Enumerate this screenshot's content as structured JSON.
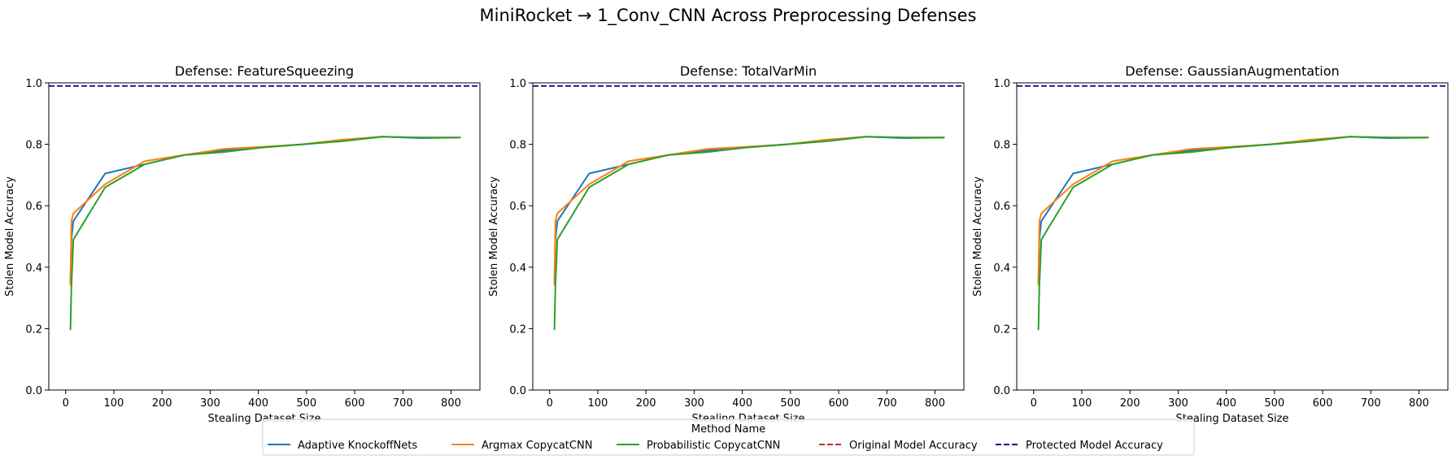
{
  "title": "MiniRocket → 1_Conv_CNN Across Preprocessing Defenses",
  "legend": {
    "title": "Method Name",
    "placement": "bottom-center"
  },
  "colors": {
    "Adaptive KnockoffNets": "#1f77b4",
    "Argmax CopycatCNN": "#ff7f0e",
    "Probabilistic CopycatCNN": "#2ca02c",
    "Original Model Accuracy": "#d62728",
    "Protected Model Accuracy": "#00008b"
  },
  "chart_data": [
    {
      "type": "line",
      "title": "Defense: FeatureSqueezing",
      "xlabel": "Stealing Dataset Size",
      "ylabel": "Stolen Model Accuracy",
      "xlim": [
        -35,
        860
      ],
      "ylim": [
        0,
        1.0
      ],
      "xticks": [
        0,
        100,
        200,
        300,
        400,
        500,
        600,
        700,
        800
      ],
      "yticks": [
        0.0,
        0.2,
        0.4,
        0.6,
        0.8,
        1.0
      ],
      "grid": false,
      "x": [
        10,
        12,
        16,
        82,
        164,
        246,
        328,
        410,
        492,
        574,
        656,
        738,
        820
      ],
      "series": [
        {
          "name": "Adaptive KnockoffNets",
          "values": [
            0.35,
            0.49,
            0.55,
            0.705,
            0.735,
            0.765,
            0.78,
            0.79,
            0.8,
            0.81,
            0.825,
            0.82,
            0.822
          ]
        },
        {
          "name": "Argmax CopycatCNN",
          "values": [
            0.34,
            0.55,
            0.575,
            0.67,
            0.745,
            0.765,
            0.785,
            0.792,
            0.8,
            0.815,
            0.825,
            0.822,
            0.822
          ]
        },
        {
          "name": "Probabilistic CopycatCNN",
          "values": [
            0.195,
            0.34,
            0.49,
            0.66,
            0.735,
            0.765,
            0.775,
            0.79,
            0.8,
            0.81,
            0.825,
            0.822,
            0.822
          ]
        }
      ],
      "reference_lines": [
        {
          "name": "Original Model Accuracy",
          "y": 0.99,
          "style": "dashed"
        },
        {
          "name": "Protected Model Accuracy",
          "y": 0.99,
          "style": "dashed"
        }
      ]
    },
    {
      "type": "line",
      "title": "Defense: TotalVarMin",
      "xlabel": "Stealing Dataset Size",
      "ylabel": "Stolen Model Accuracy",
      "xlim": [
        -35,
        860
      ],
      "ylim": [
        0,
        1.0
      ],
      "xticks": [
        0,
        100,
        200,
        300,
        400,
        500,
        600,
        700,
        800
      ],
      "yticks": [
        0.0,
        0.2,
        0.4,
        0.6,
        0.8,
        1.0
      ],
      "grid": false,
      "x": [
        10,
        12,
        16,
        82,
        164,
        246,
        328,
        410,
        492,
        574,
        656,
        738,
        820
      ],
      "series": [
        {
          "name": "Adaptive KnockoffNets",
          "values": [
            0.35,
            0.49,
            0.55,
            0.705,
            0.735,
            0.765,
            0.78,
            0.79,
            0.8,
            0.81,
            0.825,
            0.82,
            0.822
          ]
        },
        {
          "name": "Argmax CopycatCNN",
          "values": [
            0.34,
            0.55,
            0.575,
            0.67,
            0.745,
            0.765,
            0.785,
            0.792,
            0.8,
            0.815,
            0.825,
            0.822,
            0.822
          ]
        },
        {
          "name": "Probabilistic CopycatCNN",
          "values": [
            0.195,
            0.34,
            0.49,
            0.66,
            0.735,
            0.765,
            0.775,
            0.79,
            0.8,
            0.81,
            0.825,
            0.822,
            0.822
          ]
        }
      ],
      "reference_lines": [
        {
          "name": "Original Model Accuracy",
          "y": 0.99,
          "style": "dashed"
        },
        {
          "name": "Protected Model Accuracy",
          "y": 0.99,
          "style": "dashed"
        }
      ]
    },
    {
      "type": "line",
      "title": "Defense: GaussianAugmentation",
      "xlabel": "Stealing Dataset Size",
      "ylabel": "Stolen Model Accuracy",
      "xlim": [
        -35,
        860
      ],
      "ylim": [
        0,
        1.0
      ],
      "xticks": [
        0,
        100,
        200,
        300,
        400,
        500,
        600,
        700,
        800
      ],
      "yticks": [
        0.0,
        0.2,
        0.4,
        0.6,
        0.8,
        1.0
      ],
      "grid": false,
      "x": [
        10,
        12,
        16,
        82,
        164,
        246,
        328,
        410,
        492,
        574,
        656,
        738,
        820
      ],
      "series": [
        {
          "name": "Adaptive KnockoffNets",
          "values": [
            0.35,
            0.49,
            0.55,
            0.705,
            0.735,
            0.765,
            0.78,
            0.79,
            0.8,
            0.81,
            0.825,
            0.82,
            0.822
          ]
        },
        {
          "name": "Argmax CopycatCNN",
          "values": [
            0.34,
            0.55,
            0.575,
            0.67,
            0.745,
            0.765,
            0.785,
            0.792,
            0.8,
            0.815,
            0.825,
            0.822,
            0.822
          ]
        },
        {
          "name": "Probabilistic CopycatCNN",
          "values": [
            0.195,
            0.34,
            0.49,
            0.66,
            0.735,
            0.765,
            0.775,
            0.79,
            0.8,
            0.81,
            0.825,
            0.822,
            0.822
          ]
        }
      ],
      "reference_lines": [
        {
          "name": "Original Model Accuracy",
          "y": 0.99,
          "style": "dashed"
        },
        {
          "name": "Protected Model Accuracy",
          "y": 0.99,
          "style": "dashed"
        }
      ]
    }
  ]
}
